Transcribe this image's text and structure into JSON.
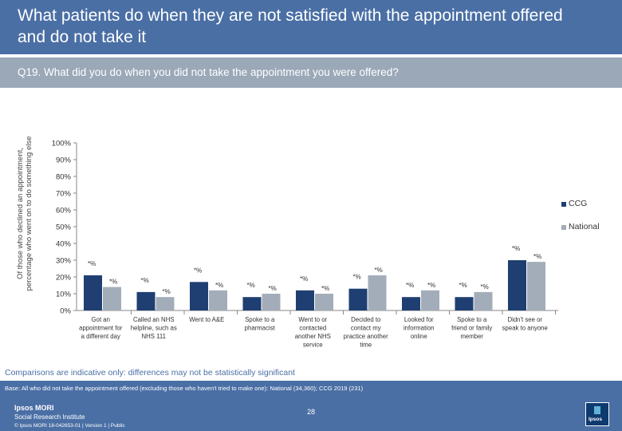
{
  "header": {
    "title": "What patients do when they are not satisfied with the appointment offered and do not take it"
  },
  "question": {
    "text": "Q19. What did you do when you did not take the appointment you were offered?"
  },
  "chart_data": {
    "type": "bar",
    "ylabel": "Of those who declined an appointment, percentage who went on to do something else",
    "ylim": [
      0,
      100
    ],
    "yticks": [
      "0%",
      "10%",
      "20%",
      "30%",
      "40%",
      "50%",
      "60%",
      "70%",
      "80%",
      "90%",
      "100%"
    ],
    "categories": [
      [
        "Got an",
        "appointment for",
        "a different day"
      ],
      [
        "Called an NHS",
        "helpline, such as",
        "NHS 111"
      ],
      [
        "Went to A&E"
      ],
      [
        "Spoke to a",
        "pharmacist"
      ],
      [
        "Went to or",
        "contacted",
        "another NHS",
        "service"
      ],
      [
        "Decided to",
        "contact my",
        "practice another",
        "time"
      ],
      [
        "Looked for",
        "information",
        "online"
      ],
      [
        "Spoke to a",
        "friend or family",
        "member"
      ],
      [
        "Didn't see or",
        "speak to anyone"
      ]
    ],
    "series": [
      {
        "name": "CCG",
        "color": "#1f3f72",
        "values": [
          21,
          11,
          17,
          8,
          12,
          13,
          8,
          8,
          30
        ],
        "labels": [
          "*%",
          "*%",
          "*%",
          "*%",
          "*%",
          "*%",
          "*%",
          "*%",
          "*%"
        ]
      },
      {
        "name": "National",
        "color": "#a3adb9",
        "values": [
          14,
          8,
          12,
          10,
          10,
          21,
          12,
          11,
          29
        ],
        "labels": [
          "*%",
          "*%",
          "*%",
          "*%",
          "*%",
          "*%",
          "*%",
          "*%",
          "*%"
        ]
      }
    ],
    "legend_position": "right",
    "grid": false
  },
  "caveat": "Comparisons are indicative only: differences may not be statistically significant",
  "footer": {
    "base": "Base: All who did not take the appointment offered (excluding those who haven't tried to make one): National (34,360); CCG 2019 (231)",
    "page": "28",
    "logo_line1": "Ipsos MORI",
    "logo_line2": "Social Research Institute",
    "legal": "© Ipsos MORI    18-042653-01 | Version 1 | Public",
    "brand": "Ipsos"
  }
}
